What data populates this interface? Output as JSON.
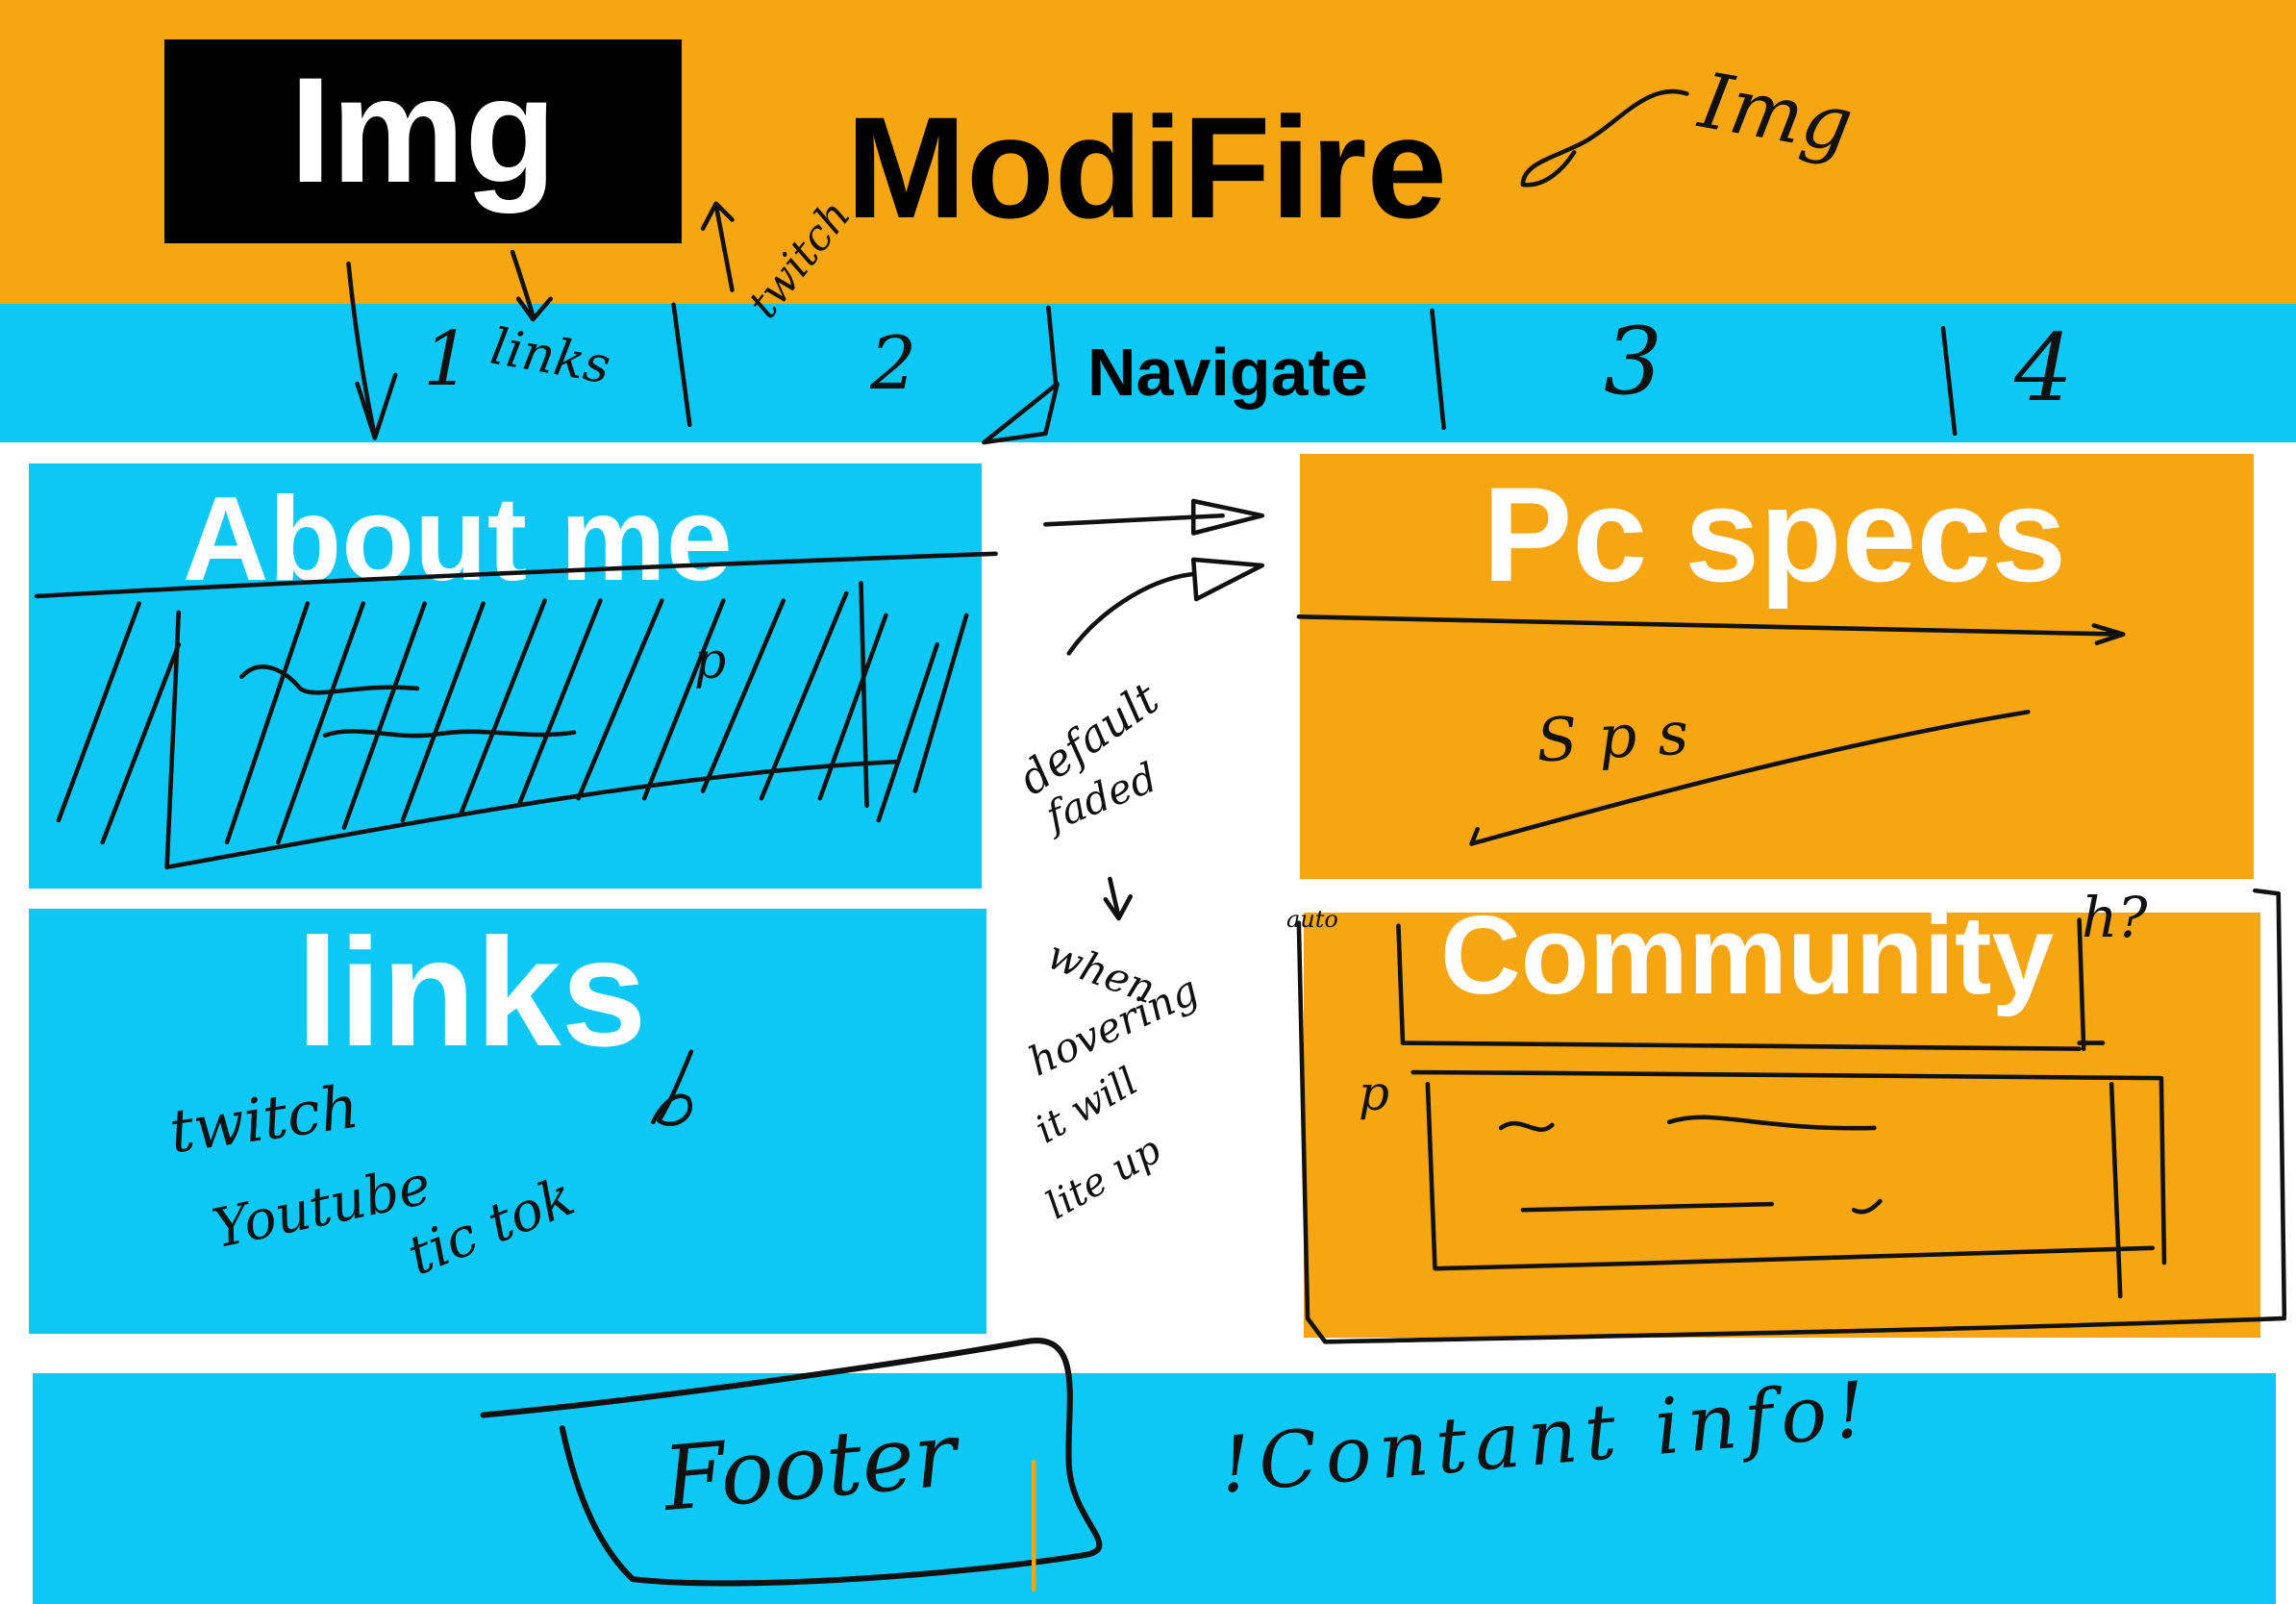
{
  "header": {
    "logo_label": "Img",
    "title": "ModiFire"
  },
  "nav": {
    "label": "Navigate",
    "slots": [
      "1",
      "2",
      "3",
      "4"
    ],
    "slot_note": "links"
  },
  "cards": {
    "about": {
      "title": "About me"
    },
    "links": {
      "title": "links"
    },
    "specs": {
      "title": "Pc specs"
    },
    "community": {
      "title": "Community"
    }
  },
  "notes": {
    "twitch_arrow": "twitch",
    "header_img": "Img",
    "about_p": "p",
    "hover_default": "default",
    "hover_faded": "faded",
    "hover_when": "when",
    "hover_hovering": "hovering",
    "hover_it_will": "it will",
    "hover_lite_up": "lite up",
    "links_twitch": "twitch",
    "links_youtube": "Youtube",
    "links_tiktok": "tic tok",
    "specs_sps": "Sps",
    "community_auto": "auto",
    "community_h": "h?",
    "community_p": "p",
    "footer": "Footer",
    "footer_contact": "!Contant info!"
  },
  "theme": {
    "orange": "#F6A612",
    "cyan": "#0DC8F4",
    "logo_bg": "#000000",
    "title_text": "#FFFFFF",
    "ink": "#111111"
  }
}
